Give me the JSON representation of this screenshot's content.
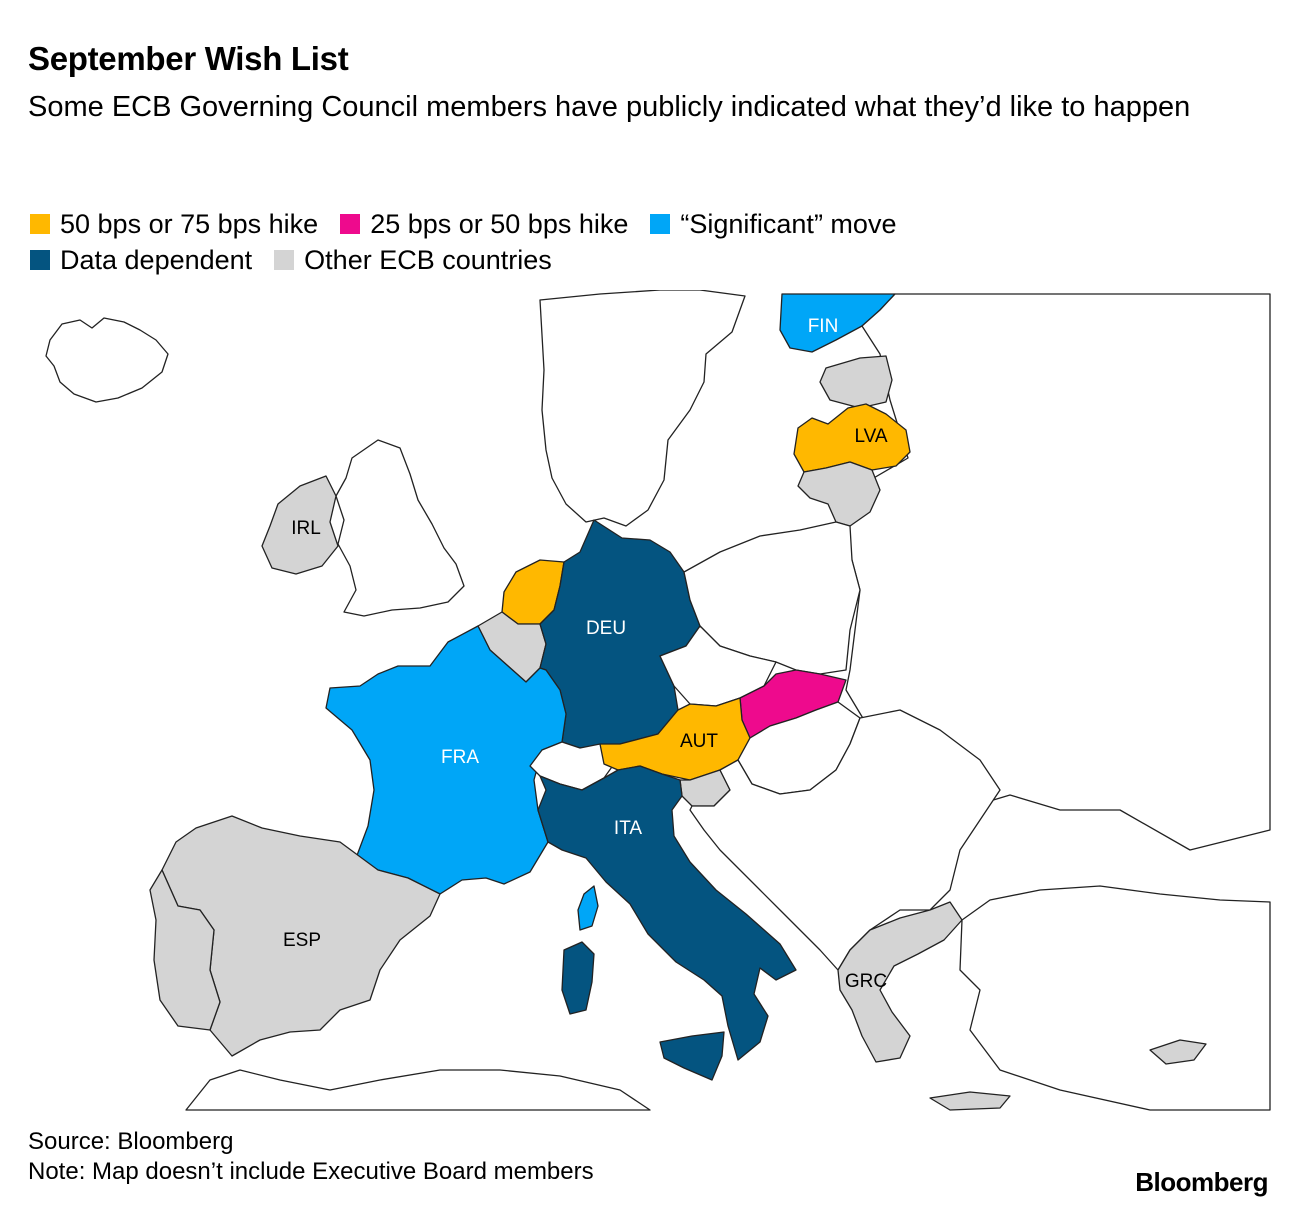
{
  "header": {
    "title": "September Wish List",
    "subtitle": "Some ECB Governing Council members have publicly indicated what they’d like to happen"
  },
  "colors": {
    "hike_large": "#FFB800",
    "hike_small": "#EE0A8D",
    "significant": "#00A6F7",
    "data_dependent": "#045480",
    "other_ecb": "#D4D4D4",
    "non_ecb": "#FFFFFF",
    "border": "#222222"
  },
  "legend": [
    {
      "label": "50 bps or 75 bps hike",
      "color": "#FFB800"
    },
    {
      "label": "25 bps or 50 bps hike",
      "color": "#EE0A8D"
    },
    {
      "label": "“Significant” move",
      "color": "#00A6F7"
    },
    {
      "label": "Data dependent",
      "color": "#045480"
    },
    {
      "label": "Other ECB countries",
      "color": "#D4D4D4"
    }
  ],
  "map": {
    "countries": [
      {
        "code": "FIN",
        "label": "FIN",
        "category": "“Significant” move"
      },
      {
        "code": "LVA",
        "label": "LVA",
        "category": "50 bps or 75 bps hike"
      },
      {
        "code": "IRL",
        "label": "IRL",
        "category": "Other ECB countries"
      },
      {
        "code": "DEU",
        "label": "DEU",
        "category": "Data dependent"
      },
      {
        "code": "FRA",
        "label": "FRA",
        "category": "“Significant” move"
      },
      {
        "code": "AUT",
        "label": "AUT",
        "category": "50 bps or 75 bps hike"
      },
      {
        "code": "ITA",
        "label": "ITA",
        "category": "Data dependent"
      },
      {
        "code": "ESP",
        "label": "ESP",
        "category": "Other ECB countries"
      },
      {
        "code": "GRC",
        "label": "GRC",
        "category": "Other ECB countries"
      }
    ]
  },
  "footer": {
    "source": "Source: Bloomberg",
    "note": "Note: Map doesn’t include Executive Board members"
  },
  "brand": "Bloomberg"
}
